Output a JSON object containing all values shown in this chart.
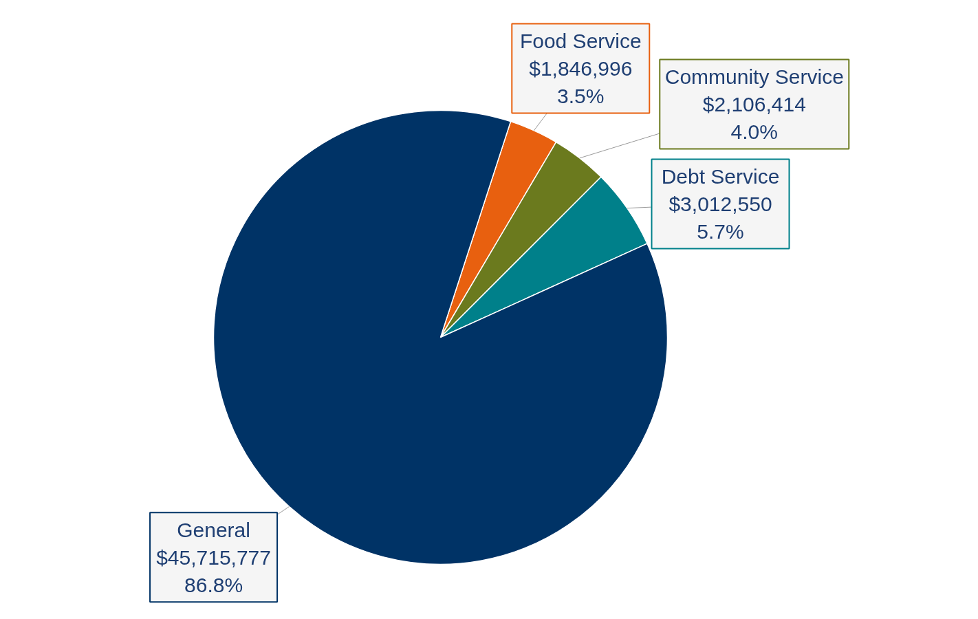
{
  "chart_data": {
    "type": "pie",
    "categories": [
      "Food Service",
      "Community Service",
      "Debt Service",
      "General"
    ],
    "values": [
      1846996,
      2106414,
      3012550,
      45715777
    ],
    "colors": [
      "#e8600f",
      "#6b7a1e",
      "#00808a",
      "#003366"
    ],
    "value_labels": [
      "$1,846,996\n3.5%",
      "$2,106,414\n4.0%",
      "$3,012,550\n5.7%",
      "$45,715,777\n86.8%"
    ]
  }
}
